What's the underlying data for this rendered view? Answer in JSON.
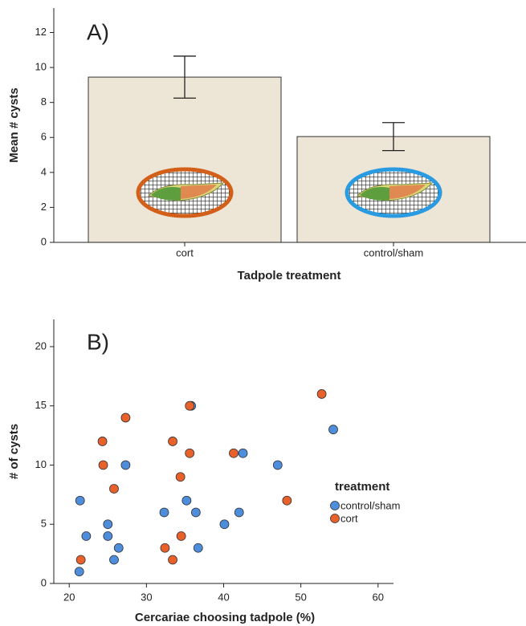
{
  "chart_data": [
    {
      "type": "bar",
      "panel_label": "A)",
      "x_label": "Tadpole treatment",
      "y_label": "Mean # cysts",
      "categories": [
        "cort",
        "control/sham"
      ],
      "values": [
        9.45,
        6.05
      ],
      "errors": [
        1.2,
        0.8
      ],
      "color": "#ede6d6",
      "ylim": [
        0,
        13.4
      ],
      "yticks": [
        0,
        2,
        4,
        6,
        8,
        10,
        12
      ],
      "grid": false
    },
    {
      "type": "scatter",
      "panel_label": "B)",
      "x_label": "Cercariae choosing tadpole (%)",
      "y_label": "# of cysts",
      "legend_title": "treatment",
      "legend": "right",
      "xlim": [
        18,
        62
      ],
      "xticks": [
        20,
        30,
        40,
        50,
        60
      ],
      "ylim": [
        0,
        22.3
      ],
      "yticks": [
        0,
        5,
        10,
        15,
        20
      ],
      "grid": false,
      "series": [
        {
          "name": "control/sham",
          "color": "#4d8ddb",
          "x": [
            21.4,
            22.2,
            21.3,
            25.0,
            25.0,
            25.8,
            26.4,
            27.3,
            32.3,
            35.2,
            35.8,
            36.4,
            36.7,
            40.1,
            42.0,
            42.5,
            47.0,
            54.2
          ],
          "values": [
            7,
            4,
            1,
            5,
            4,
            2,
            3,
            10,
            6,
            7,
            15,
            6,
            3,
            5,
            6,
            11,
            10,
            13
          ]
        },
        {
          "name": "cort",
          "color": "#e8612a",
          "x": [
            21.5,
            24.3,
            24.4,
            25.8,
            27.3,
            32.4,
            33.4,
            33.4,
            34.4,
            34.5,
            35.6,
            35.6,
            41.3,
            48.2,
            52.7
          ],
          "values": [
            2,
            12,
            10,
            8,
            14,
            3,
            12,
            2,
            9,
            4,
            15,
            11,
            11,
            7,
            16
          ]
        }
      ]
    }
  ]
}
